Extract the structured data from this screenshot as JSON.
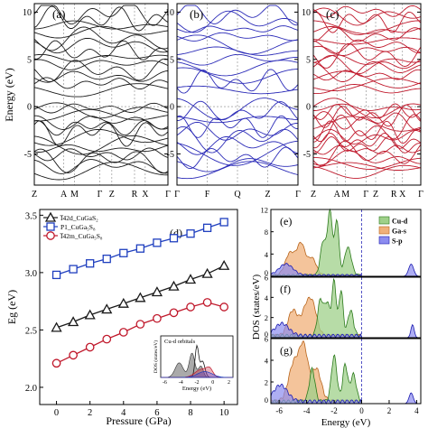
{
  "colors": {
    "band_a": "#1a1a1a",
    "band_b": "#2b2bb8",
    "band_c": "#c0182b",
    "i42d": "#1a1a1a",
    "p1": "#1f3fbf",
    "i42m": "#c0182b",
    "cu_d": "#9fd08a",
    "cu_d_line": "#2c7a1c",
    "ga_s": "#f0b07a",
    "ga_s_line": "#b8651c",
    "s_p": "#8c8cf0",
    "s_p_line": "#1c1cb0"
  },
  "bands": {
    "ylabel": "Energy (eV)",
    "yticks": [
      -5,
      0,
      5,
      10
    ],
    "ylim": [
      -8.3,
      10.9
    ],
    "panels": [
      {
        "label": "(a)",
        "kpoints": [
          "Z",
          "A",
          "M",
          "Γ",
          "Z",
          "R",
          "X",
          "Γ"
        ],
        "kpos": [
          0,
          0.22,
          0.3,
          0.49,
          0.58,
          0.75,
          0.83,
          1.0
        ]
      },
      {
        "label": "(b)",
        "kpoints": [
          "Γ",
          "F",
          "Q",
          "Z",
          "Γ"
        ],
        "kpos": [
          0,
          0.25,
          0.5,
          0.75,
          1.0
        ]
      },
      {
        "label": "(c)",
        "kpoints": [
          "Z",
          "A",
          "M",
          "Γ",
          "Z",
          "R",
          "X",
          "Γ"
        ],
        "kpos": [
          0,
          0.22,
          0.3,
          0.49,
          0.58,
          0.75,
          0.83,
          1.0
        ]
      }
    ]
  },
  "chart_data": [
    {
      "type": "line",
      "panel": "(d)",
      "xlabel": "Pressure (GPa)",
      "ylabel": "Eg (eV)",
      "xlim": [
        -1,
        10.8
      ],
      "ylim": [
        1.85,
        3.55
      ],
      "xticks": [
        0,
        2,
        4,
        6,
        8,
        10
      ],
      "yticks": [
        2.0,
        2.5,
        3.0,
        3.5
      ],
      "x": [
        0,
        1,
        2,
        3,
        4,
        5,
        6,
        7,
        8,
        9,
        10
      ],
      "series": [
        {
          "name": "I̅42d_CuGaS₂",
          "marker": "triangle",
          "values": [
            2.52,
            2.57,
            2.63,
            2.68,
            2.73,
            2.78,
            2.83,
            2.88,
            2.94,
            2.99,
            3.06
          ]
        },
        {
          "name": "P1_CuGa₅S₈",
          "marker": "square",
          "values": [
            2.98,
            3.03,
            3.08,
            3.12,
            3.17,
            3.21,
            3.26,
            3.3,
            3.34,
            3.39,
            3.44
          ]
        },
        {
          "name": "I̅42m_CuGa₅S₈",
          "marker": "circle",
          "values": [
            2.21,
            2.28,
            2.35,
            2.42,
            2.48,
            2.55,
            2.6,
            2.65,
            2.7,
            2.74,
            2.7
          ]
        }
      ],
      "inset": {
        "title": "Cu-d orbitals",
        "xlabel": "Energy (eV)",
        "ylabel": "DOS (states/eV)",
        "xticks": [
          -6,
          -4,
          -2,
          0,
          2
        ],
        "xlim": [
          -6.5,
          2.5
        ]
      }
    },
    {
      "type": "area",
      "panels": [
        "(e)",
        "(f)",
        "(g)"
      ],
      "xlabel": "Energy (eV)",
      "ylabel": "DOS (states/eV)",
      "xlim": [
        -6.6,
        4.3
      ],
      "xticks": [
        -6,
        -4,
        -2,
        0,
        2,
        4
      ],
      "legend": [
        "Cu-d",
        "Ga-s",
        "S-p"
      ],
      "panel_e": {
        "ylim": [
          0,
          12
        ],
        "yticks": [
          0,
          4,
          8,
          12
        ]
      },
      "panel_f": {
        "ylim": [
          0,
          6
        ],
        "yticks": [
          0,
          2,
          4,
          6
        ]
      },
      "panel_g": {
        "ylim": [
          0,
          6
        ],
        "yticks": [
          0,
          2,
          4,
          6
        ]
      }
    }
  ]
}
